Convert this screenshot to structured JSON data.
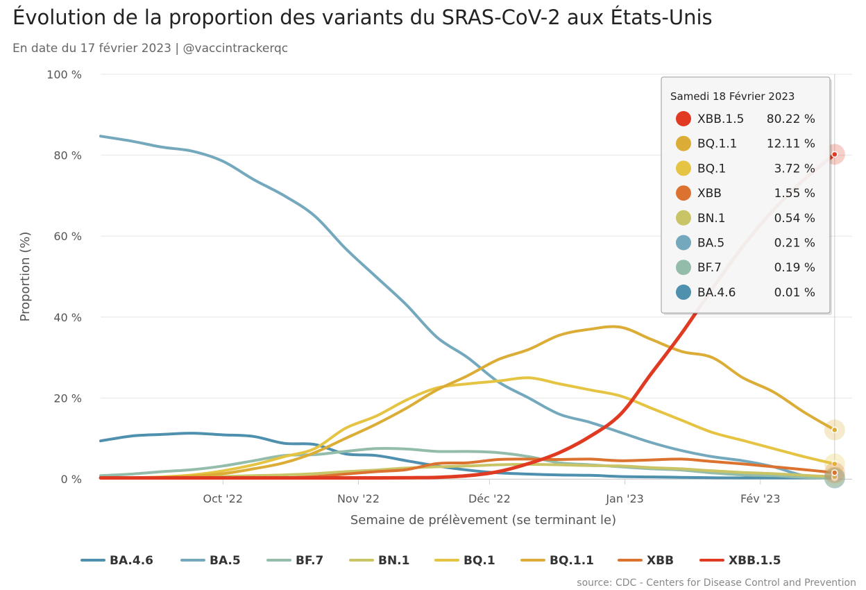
{
  "title": "Évolution de la proportion des variants du SRAS-CoV-2 aux États-Unis",
  "subtitle": "En date du 17 février 2023 | @vaccintrackerqc",
  "credits": "source: CDC - Centers for Disease Control and Prevention",
  "tooltip": {
    "header": "Samedi 18 Février 2023",
    "rows": [
      {
        "name": "XBB.1.5",
        "value": "80.22 %",
        "color": "#e03a22"
      },
      {
        "name": "BQ.1.1",
        "value": "12.11 %",
        "color": "#dcad36"
      },
      {
        "name": "BQ.1",
        "value": "3.72 %",
        "color": "#e6c443"
      },
      {
        "name": "XBB",
        "value": "1.55 %",
        "color": "#dc722f"
      },
      {
        "name": "BN.1",
        "value": "0.54 %",
        "color": "#c9c466"
      },
      {
        "name": "BA.5",
        "value": "0.21 %",
        "color": "#74a8bc"
      },
      {
        "name": "BF.7",
        "value": "0.19 %",
        "color": "#93bcaa"
      },
      {
        "name": "BA.4.6",
        "value": "0.01 %",
        "color": "#4e90ad"
      }
    ]
  },
  "chart_data": {
    "type": "line",
    "title": "Évolution de la proportion des variants du SRAS-CoV-2 aux États-Unis",
    "subtitle": "En date du 17 février 2023 | @vaccintrackerqc",
    "xlabel": "Semaine de prélèvement (se terminant le)",
    "ylabel": "Proportion (%)",
    "ylim": [
      0,
      100
    ],
    "yticks": [
      0,
      20,
      40,
      60,
      80,
      100
    ],
    "ytick_labels": [
      "0 %",
      "20 %",
      "40 %",
      "60 %",
      "80 %",
      "100 %"
    ],
    "xlim": [
      "2022-09-03",
      "2023-02-22"
    ],
    "xticks": [
      {
        "date": "2022-10-01",
        "label": "Oct '22"
      },
      {
        "date": "2022-11-01",
        "label": "Nov '22"
      },
      {
        "date": "2022-12-01",
        "label": "Déc '22"
      },
      {
        "date": "2023-01-01",
        "label": "Jan '23"
      },
      {
        "date": "2023-02-01",
        "label": "Fév '23"
      }
    ],
    "legend_position": "bottom",
    "grid": "horizontal",
    "highlight_date": "2023-02-18",
    "x": [
      "2022-09-03",
      "2022-09-10",
      "2022-09-17",
      "2022-09-24",
      "2022-10-01",
      "2022-10-08",
      "2022-10-15",
      "2022-10-22",
      "2022-10-29",
      "2022-11-05",
      "2022-11-12",
      "2022-11-19",
      "2022-11-26",
      "2022-12-03",
      "2022-12-10",
      "2022-12-17",
      "2022-12-24",
      "2022-12-31",
      "2023-01-07",
      "2023-01-14",
      "2023-01-21",
      "2023-01-28",
      "2023-02-04",
      "2023-02-11",
      "2023-02-18"
    ],
    "series": [
      {
        "name": "BA.4.6",
        "color": "#4e90ad",
        "width": 4,
        "values": [
          9.4,
          10.6,
          11.0,
          11.3,
          10.9,
          10.5,
          8.8,
          8.5,
          6.2,
          5.8,
          4.5,
          3.2,
          2.2,
          1.5,
          1.2,
          1.0,
          0.9,
          0.6,
          0.5,
          0.4,
          0.3,
          0.2,
          0.1,
          0.05,
          0.01
        ]
      },
      {
        "name": "BA.5",
        "color": "#74a8bc",
        "width": 4,
        "values": [
          84.7,
          83.5,
          82.0,
          81.0,
          78.5,
          74.0,
          70.0,
          65.0,
          57.0,
          50.0,
          43.0,
          35.0,
          30.0,
          24.0,
          20.0,
          16.0,
          14.0,
          11.5,
          9.0,
          7.0,
          5.5,
          4.5,
          3.0,
          0.8,
          0.21
        ]
      },
      {
        "name": "BF.7",
        "color": "#93bcaa",
        "width": 4,
        "values": [
          0.8,
          1.2,
          1.8,
          2.3,
          3.2,
          4.5,
          5.8,
          6.0,
          6.8,
          7.5,
          7.4,
          6.8,
          6.8,
          6.5,
          5.5,
          4.0,
          3.5,
          3.0,
          2.5,
          2.2,
          1.5,
          1.0,
          0.8,
          0.4,
          0.19
        ]
      },
      {
        "name": "BN.1",
        "color": "#c9c466",
        "width": 4,
        "values": [
          0.0,
          0.1,
          0.2,
          0.4,
          0.6,
          0.8,
          1.0,
          1.3,
          1.8,
          2.2,
          2.7,
          3.0,
          3.2,
          3.5,
          3.6,
          3.5,
          3.3,
          3.2,
          2.8,
          2.5,
          2.0,
          1.6,
          1.3,
          0.9,
          0.54
        ]
      },
      {
        "name": "BQ.1",
        "color": "#e6c443",
        "width": 4,
        "values": [
          0.2,
          0.3,
          0.5,
          1.0,
          2.0,
          3.5,
          5.5,
          7.5,
          12.5,
          15.5,
          19.5,
          22.5,
          23.5,
          24.2,
          25.0,
          23.5,
          22.0,
          20.5,
          17.5,
          14.5,
          11.5,
          9.5,
          7.5,
          5.5,
          3.72
        ]
      },
      {
        "name": "BQ.1.1",
        "color": "#dcad36",
        "width": 4,
        "values": [
          0.1,
          0.2,
          0.4,
          0.7,
          1.3,
          2.5,
          4.0,
          6.5,
          10.0,
          13.5,
          17.5,
          22.0,
          25.5,
          29.5,
          32.0,
          35.5,
          37.0,
          37.5,
          34.5,
          31.5,
          30.0,
          25.0,
          21.5,
          16.5,
          12.11
        ]
      },
      {
        "name": "XBB",
        "color": "#dc722f",
        "width": 4,
        "values": [
          0.0,
          0.0,
          0.0,
          0.1,
          0.1,
          0.2,
          0.3,
          0.6,
          1.2,
          1.8,
          2.3,
          3.8,
          4.0,
          4.8,
          4.9,
          4.8,
          4.9,
          4.5,
          4.7,
          4.9,
          4.3,
          3.7,
          3.0,
          2.3,
          1.55
        ]
      },
      {
        "name": "XBB.1.5",
        "color": "#e03a22",
        "width": 5,
        "values": [
          0.0,
          0.0,
          0.0,
          0.0,
          0.0,
          0.0,
          0.0,
          0.1,
          0.1,
          0.2,
          0.3,
          0.4,
          0.8,
          1.8,
          3.8,
          6.5,
          10.5,
          16.0,
          26.0,
          36.0,
          47.0,
          57.5,
          66.5,
          74.0,
          80.22
        ]
      }
    ]
  }
}
